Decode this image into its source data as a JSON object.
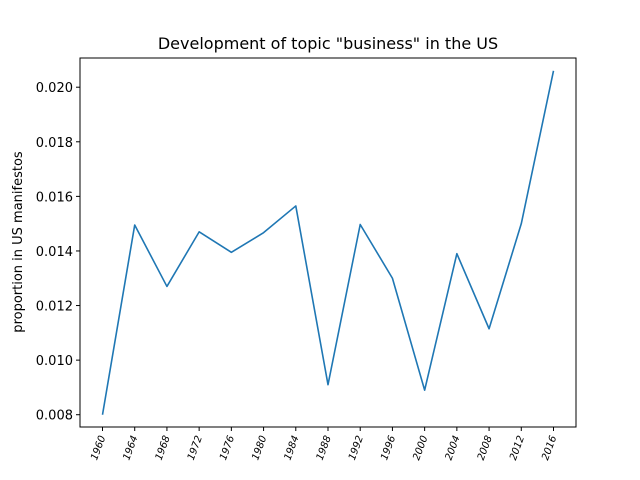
{
  "chart_data": {
    "type": "line",
    "title": "Development of topic \"business\" in the US",
    "xlabel": "",
    "ylabel": "proportion in US manifestos",
    "categories": [
      "1960",
      "1964",
      "1968",
      "1972",
      "1976",
      "1980",
      "1984",
      "1988",
      "1992",
      "1996",
      "2000",
      "2004",
      "2008",
      "2012",
      "2016"
    ],
    "series": [
      {
        "values": [
          0.008,
          0.01495,
          0.0127,
          0.0147,
          0.01395,
          0.01467,
          0.01565,
          0.0091,
          0.01497,
          0.013,
          0.0089,
          0.0139,
          0.01115,
          0.015,
          0.0206
        ]
      }
    ],
    "yticks": [
      0.008,
      0.01,
      0.012,
      0.014,
      0.016,
      0.018,
      0.02
    ],
    "ytick_labels": [
      "0.008",
      "0.010",
      "0.012",
      "0.014",
      "0.016",
      "0.018",
      "0.020"
    ],
    "ylim": [
      0.00755,
      0.02107
    ],
    "line_color": "#1f77b4",
    "grid": false
  }
}
